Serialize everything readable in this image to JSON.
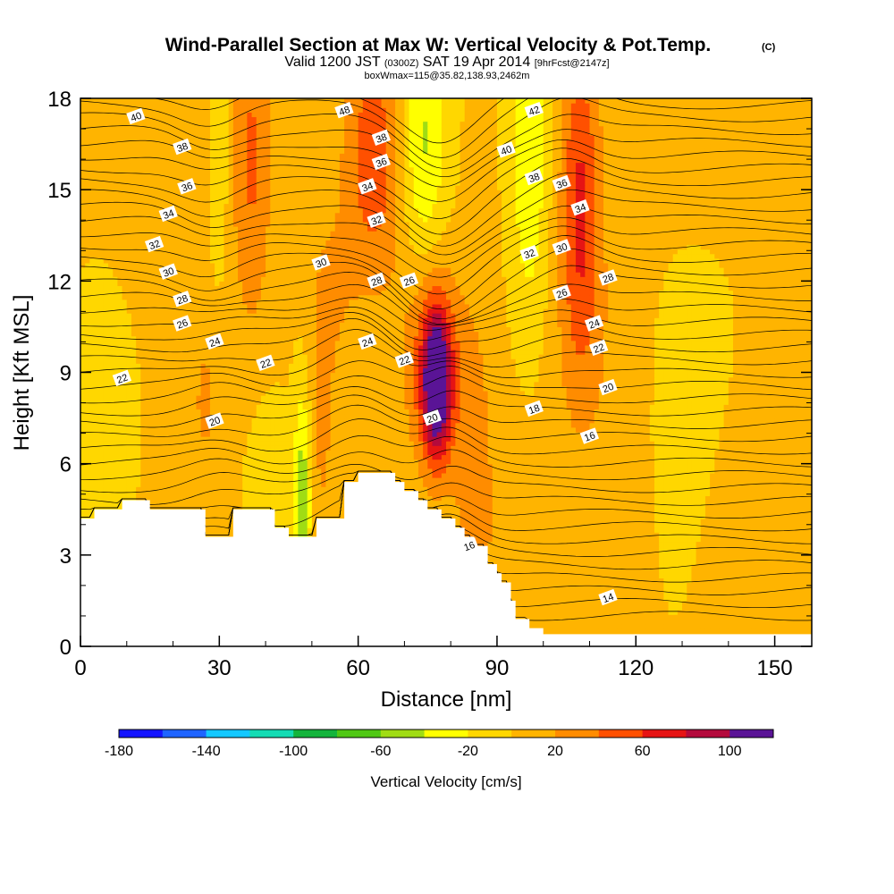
{
  "chart_data": {
    "type": "heatmap",
    "title": {
      "main": "Wind-Parallel Section at Max W: Vertical Velocity & Pot.Temp.",
      "copyright": "(C)",
      "valid_prefix": "Valid 1200 JST",
      "valid_utc": "(0300Z)",
      "valid_date": "SAT 19 Apr 2014",
      "forecast": "[9hrFcst@2147z]",
      "box": "boxWmax=115@35.82,138.93,2462m"
    },
    "xlabel": "Distance [nm]",
    "ylabel": "Height [Kft MSL]",
    "xlim": [
      0,
      158
    ],
    "ylim": [
      0,
      18
    ],
    "xticks": [
      0,
      30,
      60,
      90,
      120,
      150
    ],
    "yticks": [
      0,
      3,
      6,
      9,
      12,
      15,
      18
    ],
    "x_minor_step": 10,
    "y_minor_step": 1,
    "colorbar": {
      "title": "Vertical Velocity [cm/s]",
      "bounds": [
        -180,
        120
      ],
      "labels": [
        -180,
        -140,
        -100,
        -60,
        -20,
        20,
        60,
        100
      ],
      "colors": [
        "#1414ff",
        "#1e64ff",
        "#14c8ff",
        "#14dcb4",
        "#14b43c",
        "#50c814",
        "#a0dc14",
        "#ffff00",
        "#ffd700",
        "#ffb400",
        "#ff8c00",
        "#ff5000",
        "#e61414",
        "#b40a3c",
        "#5a1496"
      ]
    },
    "velocity_features": [
      {
        "x": 77,
        "y": 8.6,
        "sx": 2.2,
        "sy": 1.7,
        "w": 115
      },
      {
        "x": 76,
        "y": 9.5,
        "sx": 4.5,
        "sy": 2.5,
        "w": 45
      },
      {
        "x": 108,
        "y": 14.5,
        "sx": 3,
        "sy": 4,
        "w": 60
      },
      {
        "x": 63,
        "y": 16,
        "sx": 5,
        "sy": 3,
        "w": 55
      },
      {
        "x": 37,
        "y": 16,
        "sx": 3,
        "sy": 4,
        "w": 40
      },
      {
        "x": 55,
        "y": 12,
        "sx": 4,
        "sy": 2.5,
        "w": 25
      },
      {
        "x": 85,
        "y": 5.5,
        "sx": 3,
        "sy": 4,
        "w": 28
      },
      {
        "x": 52,
        "y": 7,
        "sx": 2,
        "sy": 3,
        "w": 22
      },
      {
        "x": 27,
        "y": 8,
        "sx": 2.2,
        "sy": 1.8,
        "w": 22
      },
      {
        "x": 113,
        "y": 9.5,
        "sx": 10,
        "sy": 3.5,
        "w": 12
      },
      {
        "x": 118,
        "y": 2.5,
        "sx": 3.5,
        "sy": 4,
        "w": 15
      },
      {
        "x": 140,
        "y": 3,
        "sx": 5,
        "sy": 4,
        "w": 10
      },
      {
        "x": 92,
        "y": 3,
        "sx": 4,
        "sy": 3,
        "w": 8
      },
      {
        "x": 12,
        "y": 16,
        "sx": 12,
        "sy": 4,
        "w": 10
      },
      {
        "x": 130,
        "y": 17,
        "sx": 10,
        "sy": 3,
        "w": 6
      },
      {
        "x": 48,
        "y": 5,
        "sx": 1.4,
        "sy": 2.5,
        "w": -55
      },
      {
        "x": 97,
        "y": 16,
        "sx": 2.8,
        "sy": 4,
        "w": -40
      },
      {
        "x": 74,
        "y": 16.5,
        "sx": 3.5,
        "sy": 3,
        "w": -48
      },
      {
        "x": 30,
        "y": 16.8,
        "sx": 1.5,
        "sy": 3,
        "w": -25
      },
      {
        "x": 57,
        "y": 14,
        "sx": 4,
        "sy": 3,
        "w": -15
      },
      {
        "x": 40,
        "y": 6,
        "sx": 3,
        "sy": 2,
        "w": -12
      },
      {
        "x": 130,
        "y": 8,
        "sx": 8,
        "sy": 4,
        "w": -14
      },
      {
        "x": 5,
        "y": 10,
        "sx": 6,
        "sy": 4,
        "w": -10
      }
    ],
    "terrain_kft": [
      [
        0,
        4.2
      ],
      [
        3,
        4.2
      ],
      [
        3,
        4.5
      ],
      [
        9,
        4.5
      ],
      [
        9,
        4.8
      ],
      [
        15,
        4.8
      ],
      [
        15,
        4.5
      ],
      [
        27,
        4.5
      ],
      [
        27,
        3.6
      ],
      [
        33,
        3.6
      ],
      [
        33,
        4.5
      ],
      [
        42,
        4.5
      ],
      [
        42,
        3.9
      ],
      [
        45,
        3.9
      ],
      [
        45,
        3.6
      ],
      [
        51,
        3.6
      ],
      [
        51,
        4.2
      ],
      [
        57,
        4.2
      ],
      [
        57,
        5.4
      ],
      [
        60,
        5.4
      ],
      [
        60,
        5.7
      ],
      [
        68,
        5.7
      ],
      [
        68,
        5.4
      ],
      [
        70,
        5.4
      ],
      [
        70,
        5.1
      ],
      [
        73,
        5.1
      ],
      [
        73,
        4.8
      ],
      [
        75,
        4.8
      ],
      [
        75,
        4.5
      ],
      [
        78,
        4.5
      ],
      [
        78,
        4.2
      ],
      [
        81,
        4.2
      ],
      [
        81,
        3.9
      ],
      [
        83,
        3.9
      ],
      [
        83,
        3.6
      ],
      [
        85,
        3.6
      ],
      [
        85,
        3.3
      ],
      [
        88,
        3.3
      ],
      [
        88,
        2.7
      ],
      [
        90,
        2.7
      ],
      [
        90,
        2.4
      ],
      [
        91,
        2.4
      ],
      [
        91,
        2.1
      ],
      [
        93,
        2.1
      ],
      [
        93,
        1.5
      ],
      [
        94,
        1.5
      ],
      [
        94,
        0.9
      ],
      [
        97,
        0.9
      ],
      [
        97,
        0.6
      ],
      [
        100,
        0.6
      ],
      [
        100,
        0.4
      ],
      [
        158,
        0.4
      ]
    ],
    "theta_labels": [
      {
        "value": "40",
        "x": 12,
        "y": 17.4
      },
      {
        "value": "38",
        "x": 22,
        "y": 16.4
      },
      {
        "value": "36",
        "x": 23,
        "y": 15.1
      },
      {
        "value": "34",
        "x": 19,
        "y": 14.2
      },
      {
        "value": "32",
        "x": 16,
        "y": 13.2
      },
      {
        "value": "30",
        "x": 19,
        "y": 12.3
      },
      {
        "value": "28",
        "x": 22,
        "y": 11.4
      },
      {
        "value": "26",
        "x": 22,
        "y": 10.6
      },
      {
        "value": "24",
        "x": 29,
        "y": 10.0
      },
      {
        "value": "22",
        "x": 9,
        "y": 8.8
      },
      {
        "value": "22",
        "x": 40,
        "y": 9.3
      },
      {
        "value": "20",
        "x": 29,
        "y": 7.4
      },
      {
        "value": "30",
        "x": 52,
        "y": 12.6
      },
      {
        "value": "48",
        "x": 57,
        "y": 17.6
      },
      {
        "value": "38",
        "x": 65,
        "y": 16.7
      },
      {
        "value": "36",
        "x": 65,
        "y": 15.9
      },
      {
        "value": "34",
        "x": 62,
        "y": 15.1
      },
      {
        "value": "32",
        "x": 64,
        "y": 14.0
      },
      {
        "value": "28",
        "x": 64,
        "y": 12.0
      },
      {
        "value": "26",
        "x": 71,
        "y": 12.0
      },
      {
        "value": "24",
        "x": 62,
        "y": 10.0
      },
      {
        "value": "22",
        "x": 70,
        "y": 9.4
      },
      {
        "value": "20",
        "x": 76,
        "y": 7.5
      },
      {
        "value": "16",
        "x": 84,
        "y": 3.3
      },
      {
        "value": "42",
        "x": 98,
        "y": 17.6
      },
      {
        "value": "40",
        "x": 92,
        "y": 16.3
      },
      {
        "value": "38",
        "x": 98,
        "y": 15.4
      },
      {
        "value": "36",
        "x": 104,
        "y": 15.2
      },
      {
        "value": "34",
        "x": 108,
        "y": 14.4
      },
      {
        "value": "32",
        "x": 97,
        "y": 12.9
      },
      {
        "value": "30",
        "x": 104,
        "y": 13.1
      },
      {
        "value": "28",
        "x": 114,
        "y": 12.1
      },
      {
        "value": "26",
        "x": 104,
        "y": 11.6
      },
      {
        "value": "24",
        "x": 111,
        "y": 10.6
      },
      {
        "value": "22",
        "x": 112,
        "y": 9.8
      },
      {
        "value": "20",
        "x": 114,
        "y": 8.5
      },
      {
        "value": "18",
        "x": 98,
        "y": 7.8
      },
      {
        "value": "16",
        "x": 110,
        "y": 6.9
      },
      {
        "value": "14",
        "x": 114,
        "y": 1.6
      }
    ]
  }
}
